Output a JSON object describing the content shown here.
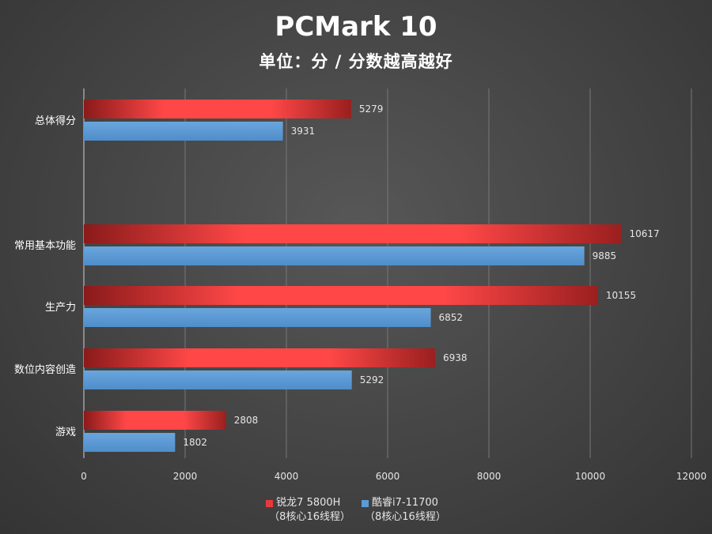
{
  "title": "PCMark 10",
  "subtitle": "单位：分 / 分数越高越好",
  "chart_data": {
    "type": "bar",
    "orientation": "horizontal",
    "categories": [
      "总体得分",
      "常用基本功能",
      "生产力",
      "数位内容创造",
      "游戏"
    ],
    "series": [
      {
        "name": "锐龙7 5800H",
        "sub": "（8核心16线程）",
        "color": "#e83a3a",
        "values": [
          5279,
          10617,
          10155,
          6938,
          2808
        ]
      },
      {
        "name": "酷睿i7-11700",
        "sub": "（8核心16线程）",
        "color": "#5b9bd5",
        "values": [
          3931,
          9885,
          6852,
          5292,
          1802
        ]
      }
    ],
    "xlim": [
      0,
      12000
    ],
    "xticks": [
      0,
      2000,
      4000,
      6000,
      8000,
      10000,
      12000
    ],
    "grid": true,
    "legend_position": "bottom"
  }
}
